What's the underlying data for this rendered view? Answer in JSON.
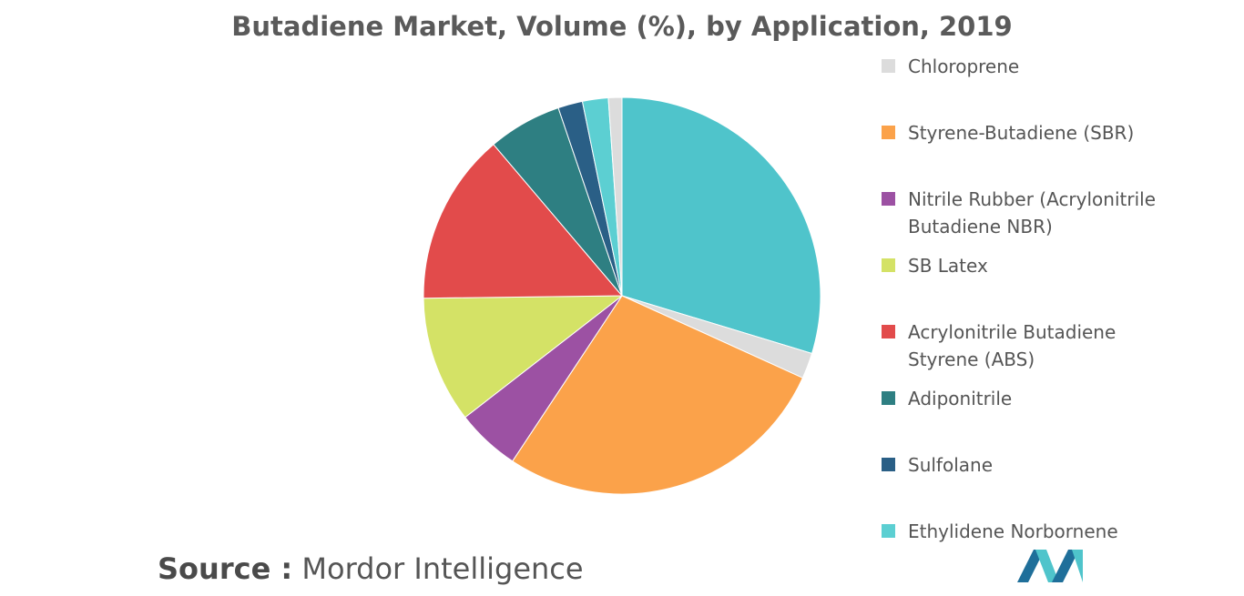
{
  "chart_data": {
    "type": "pie",
    "title": "Butadiene Market, Volume (%), by Application, 2019",
    "categories": [
      null,
      "Chloroprene",
      "Styrene-Butadiene (SBR)",
      "Nitrile Rubber (Acrylonitrile Butadiene NBR)",
      "SB Latex",
      "Acrylonitrile Butadiene Styrene (ABS)",
      "Adiponitrile",
      "Sulfolane",
      "Ethylidene Norbornene",
      null
    ],
    "values": [
      29.7,
      2.1,
      27.5,
      5.2,
      10.3,
      14,
      6,
      2,
      2.1,
      1.1
    ],
    "colors": [
      "#4fc4cb",
      "#dcdcdc",
      "#fba24a",
      "#9c51a3",
      "#d4e266",
      "#e24b4b",
      "#2e7f82",
      "#2a5f86",
      "#5ccfd2",
      "#dcdcdc"
    ],
    "source_label": "Source :",
    "source": "Mordor Intelligence"
  }
}
